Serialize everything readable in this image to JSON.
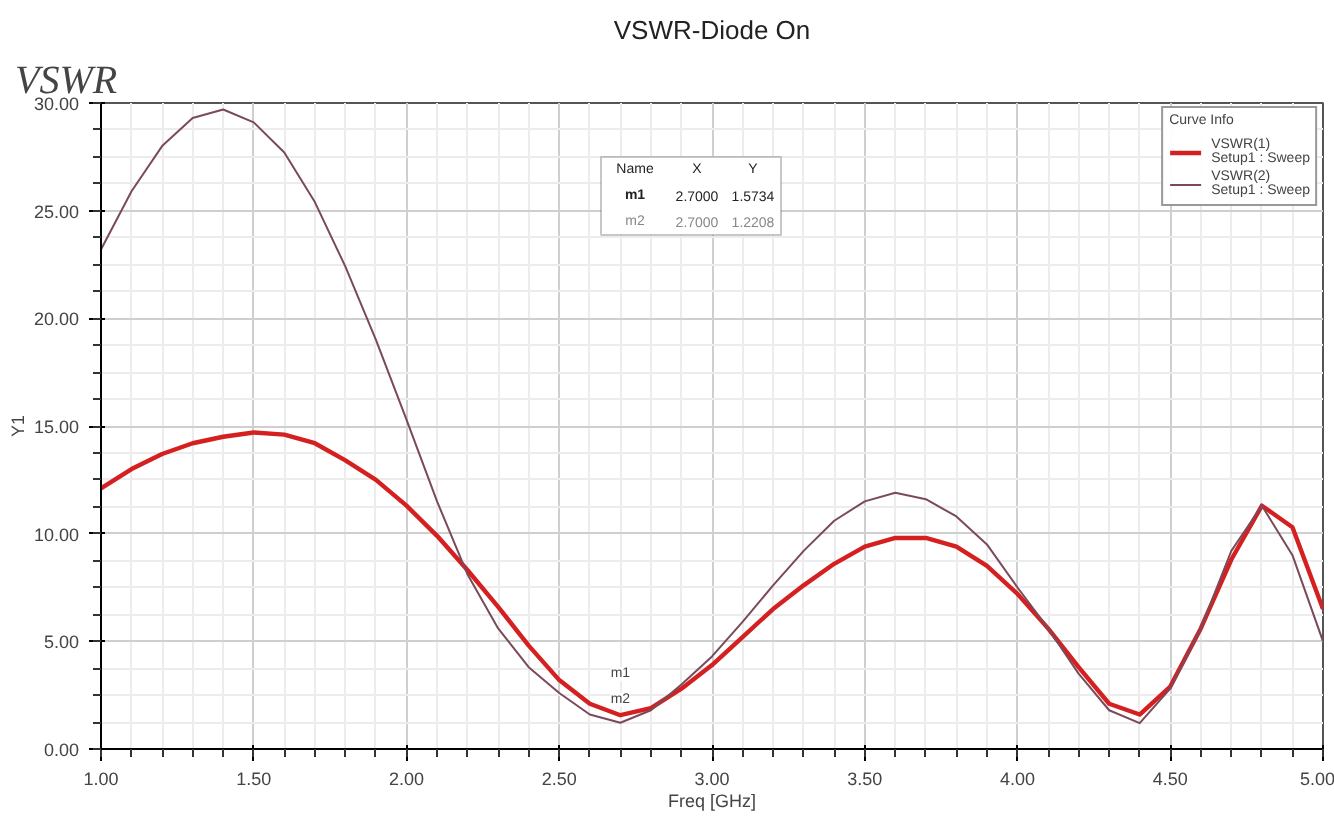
{
  "chart_data": {
    "type": "line",
    "title": "VSWR-Diode On",
    "xlabel": "Freq [GHz]",
    "ylabel": "Y1",
    "legend_title": "Curve Info",
    "x": [
      1.0,
      1.1,
      1.2,
      1.3,
      1.4,
      1.5,
      1.6,
      1.7,
      1.8,
      1.9,
      2.0,
      2.1,
      2.2,
      2.3,
      2.4,
      2.5,
      2.6,
      2.7,
      2.8,
      2.9,
      3.0,
      3.1,
      3.2,
      3.3,
      3.4,
      3.5,
      3.6,
      3.7,
      3.8,
      3.9,
      4.0,
      4.1,
      4.2,
      4.3,
      4.4,
      4.5,
      4.6,
      4.7,
      4.8,
      4.9,
      5.0
    ],
    "series": [
      {
        "name": "VSWR(1)\nSetup1 : Sweep",
        "color": "#d42020",
        "values": [
          12.1,
          13.0,
          13.7,
          14.2,
          14.5,
          14.7,
          14.6,
          14.2,
          13.4,
          12.5,
          11.3,
          9.9,
          8.3,
          6.6,
          4.8,
          3.2,
          2.1,
          1.57,
          1.9,
          2.8,
          3.9,
          5.2,
          6.5,
          7.6,
          8.6,
          9.4,
          9.8,
          9.8,
          9.4,
          8.5,
          7.2,
          5.6,
          3.8,
          2.1,
          1.6,
          2.9,
          5.6,
          8.8,
          11.3,
          10.3,
          6.5
        ]
      },
      {
        "name": "VSWR(2)\nSetup1 : Sweep",
        "color": "#7a4a5a",
        "values": [
          23.2,
          25.9,
          28.0,
          29.3,
          29.7,
          29.1,
          27.7,
          25.4,
          22.4,
          19.0,
          15.3,
          11.5,
          8.1,
          5.6,
          3.8,
          2.6,
          1.6,
          1.22,
          1.8,
          3.0,
          4.3,
          5.9,
          7.6,
          9.2,
          10.6,
          11.5,
          11.9,
          11.6,
          10.8,
          9.5,
          7.5,
          5.6,
          3.5,
          1.8,
          1.2,
          2.8,
          5.6,
          9.2,
          11.3,
          9.0,
          5.0
        ]
      }
    ],
    "xlim": [
      1.0,
      5.0
    ],
    "xticks": [
      {
        "value": 1.0,
        "label": "1.00"
      },
      {
        "value": 1.5,
        "label": "1.50"
      },
      {
        "value": 2.0,
        "label": "2.00"
      },
      {
        "value": 2.5,
        "label": "2.50"
      },
      {
        "value": 3.0,
        "label": "3.00"
      },
      {
        "value": 3.5,
        "label": "3.50"
      },
      {
        "value": 4.0,
        "label": "4.00"
      },
      {
        "value": 4.5,
        "label": "4.50"
      },
      {
        "value": 5.0,
        "label": "5.00"
      }
    ],
    "ylim": [
      0,
      30
    ],
    "yticks": [
      {
        "value": 0,
        "label": "0.00"
      },
      {
        "value": 5,
        "label": "5.00"
      },
      {
        "value": 10,
        "label": "10.00"
      },
      {
        "value": 15,
        "label": "15.00"
      },
      {
        "value": 20,
        "label": "20.00"
      },
      {
        "value": 25,
        "label": "25.00"
      },
      {
        "value": 30,
        "label": "30.00"
      }
    ],
    "grid": true,
    "legend": "top right",
    "line_style": "solid",
    "marker": "none",
    "annotations": [
      "VSWR",
      "Name",
      "X",
      "Y",
      "m1",
      "2.7000",
      "1.5734",
      "m2",
      "2.7000",
      "1.2208",
      {
        "text": "m1",
        "x": 2.7,
        "y": 1.57
      },
      {
        "text": "m2",
        "x": 2.7,
        "y": 1.22
      }
    ]
  }
}
